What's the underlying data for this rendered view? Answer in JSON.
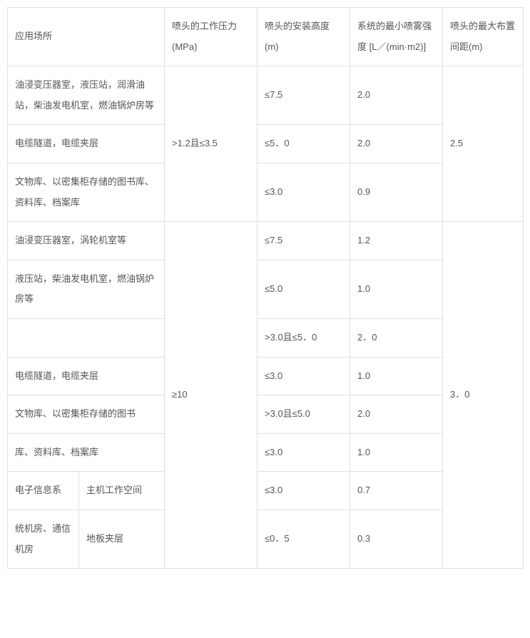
{
  "headers": {
    "place": "应用场所",
    "pressure": "喷头的工作压力(MPa)",
    "height": "喷头的安装高度(m)",
    "intensity": "系统的最小喷雾强度 [L／(min·m2)]",
    "spacing": "喷头的最大布置间距(m)"
  },
  "pressure": {
    "g1": ">1.2且≤3.5",
    "g2": "≥10"
  },
  "spacing": {
    "s1": "2.5",
    "s2": "3．0"
  },
  "rows": {
    "r1": {
      "place": "油浸变压器室，液压站，润滑油站，柴油发电机室，燃油锅炉房等",
      "height": "≤7.5",
      "intensity": "2.0"
    },
    "r2": {
      "place": "电缆隧道，电缆夹层",
      "height": "≤5．0",
      "intensity": "2.0"
    },
    "r3": {
      "place": "文物库、以密集柜存储的图书库、资料库、档案库",
      "height": "≤3.0",
      "intensity": "0.9"
    },
    "r4": {
      "place": "油浸变压器室，涡轮机室等",
      "height": "≤7.5",
      "intensity": "1.2"
    },
    "r5": {
      "place": "液压站，柴油发电机室，燃油锅炉房等",
      "height": "≤5.0",
      "intensity": "1.0"
    },
    "r6": {
      "place": "",
      "height": ">3.0且≤5．0",
      "intensity": "2．0"
    },
    "r7": {
      "place": "电缆隧道，电缆夹层",
      "height": "≤3.0",
      "intensity": "1.0"
    },
    "r8": {
      "place": "文物库、以密集柜存储的图书",
      "height": ">3.0且≤5.0",
      "intensity": "2.0"
    },
    "r9": {
      "place": "库、资料库、档案库",
      "height": "≤3.0",
      "intensity": "1.0"
    },
    "r10": {
      "placeA": "电子信息系",
      "placeB": "主机工作空间",
      "height": "≤3.0",
      "intensity": "0.7"
    },
    "r11": {
      "placeA": "统机房、通信机房",
      "placeB": "地板夹层",
      "height": "≤0．5",
      "intensity": "0.3"
    }
  }
}
